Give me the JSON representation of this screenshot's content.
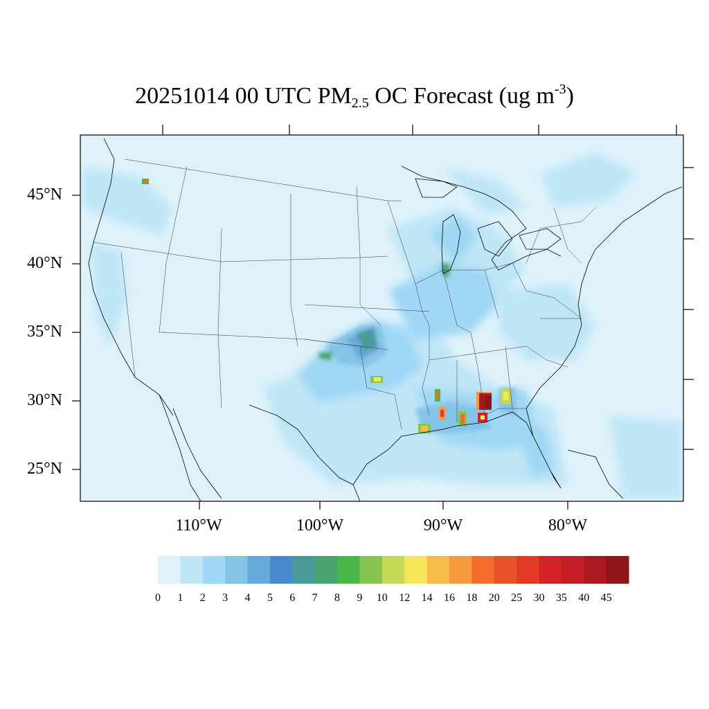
{
  "title": {
    "main": "20251014 00 UTC PM",
    "sub": "2.5",
    "after": " OC Forecast (ug m",
    "sup": "-3",
    "close": ")"
  },
  "axes": {
    "lat_labels": [
      "45°N",
      "40°N",
      "35°N",
      "30°N",
      "25°N"
    ],
    "lon_labels": [
      "110°W",
      "100°W",
      "90°W",
      "80°W"
    ]
  },
  "colorbar": {
    "labels": [
      "0",
      "1",
      "2",
      "3",
      "4",
      "5",
      "6",
      "7",
      "8",
      "9",
      "10",
      "12",
      "14",
      "16",
      "18",
      "20",
      "25",
      "30",
      "35",
      "40",
      "45"
    ],
    "colors": [
      "#dff2fb",
      "#bfe6f7",
      "#9fd7f4",
      "#86c4e7",
      "#68a9db",
      "#4a88cd",
      "#4a9a9b",
      "#4aa36e",
      "#4ab74a",
      "#86c54f",
      "#c5d957",
      "#f5e65a",
      "#f6bc4c",
      "#f69a3e",
      "#f36c2e",
      "#e8522b",
      "#e33a28",
      "#d42229",
      "#c41d25",
      "#a91a1f",
      "#8e1518"
    ]
  },
  "map": {
    "background": "#dff2fb",
    "hotspots": [
      {
        "name": "Lake Michigan region",
        "level": 8
      },
      {
        "name": "Oklahoma plume",
        "level": 7
      },
      {
        "name": "North Texas",
        "level": 12
      },
      {
        "name": "Southern Louisiana",
        "level": 14
      },
      {
        "name": "Mississippi",
        "level": 18
      },
      {
        "name": "Alabama/Florida panhandle",
        "level": 45
      },
      {
        "name": "Georgia",
        "level": 12
      }
    ]
  }
}
